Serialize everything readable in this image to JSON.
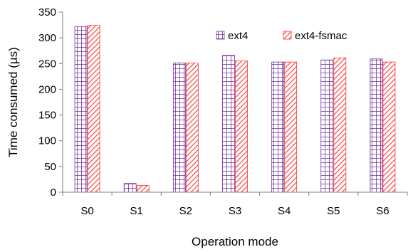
{
  "chart_data": {
    "type": "bar",
    "categories": [
      "S0",
      "S1",
      "S2",
      "S3",
      "S4",
      "S5",
      "S6"
    ],
    "series": [
      {
        "name": "ext4",
        "values": [
          322,
          17,
          251,
          266,
          253,
          257,
          259
        ],
        "color": "#7030a0",
        "pattern": "grid"
      },
      {
        "name": "ext4-fsmac",
        "values": [
          324,
          13,
          251,
          255,
          253,
          261,
          253
        ],
        "color": "#ff3333",
        "pattern": "diagonal"
      }
    ],
    "xlabel": "Operation mode",
    "ylabel": "Time consumed (µs)",
    "ylim": [
      0,
      350
    ],
    "yticks": [
      0,
      50,
      100,
      150,
      200,
      250,
      300,
      350
    ],
    "grid": false,
    "legend_position": "top-right"
  }
}
